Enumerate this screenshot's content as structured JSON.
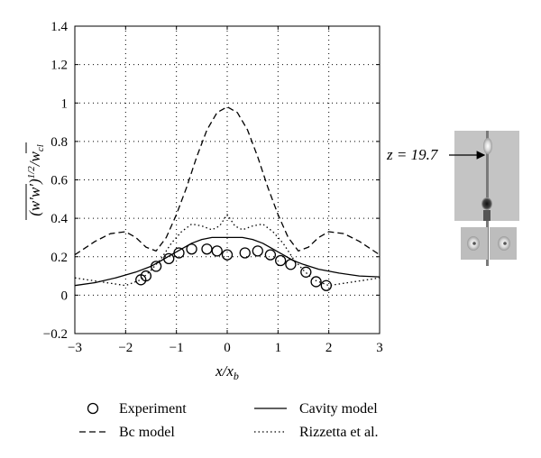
{
  "chart_data": {
    "type": "line",
    "title": "",
    "xlabel": "x/x_b",
    "ylabel": "(w'w')^{1/2}/w_cl",
    "xlim": [
      -3,
      3
    ],
    "ylim": [
      -0.2,
      1.4
    ],
    "grid": true,
    "legend_position": "below",
    "xticks": [
      -3,
      -2,
      -1,
      0,
      1,
      2,
      3
    ],
    "yticks": [
      -0.2,
      0,
      0.2,
      0.4,
      0.6,
      0.8,
      1,
      1.2,
      1.4
    ],
    "xtick_labels": [
      "−3",
      "−2",
      "−1",
      "0",
      "1",
      "2",
      "3"
    ],
    "ytick_labels": [
      "−0.2",
      "0",
      "0.2",
      "0.4",
      "0.6",
      "0.8",
      "1",
      "1.2",
      "1.4"
    ],
    "series": [
      {
        "name": "Experiment",
        "style": "markers",
        "x": [
          -1.7,
          -1.6,
          -1.4,
          -1.15,
          -0.95,
          -0.7,
          -0.4,
          -0.2,
          0,
          0.35,
          0.6,
          0.85,
          1.05,
          1.25,
          1.55,
          1.75,
          1.95
        ],
        "y": [
          0.08,
          0.1,
          0.15,
          0.19,
          0.22,
          0.24,
          0.24,
          0.23,
          0.21,
          0.22,
          0.23,
          0.21,
          0.18,
          0.16,
          0.12,
          0.07,
          0.05
        ]
      },
      {
        "name": "Cavity model",
        "style": "solid",
        "x": [
          -3,
          -2.6,
          -2.2,
          -1.8,
          -1.5,
          -1.3,
          -1.1,
          -0.9,
          -0.7,
          -0.5,
          -0.3,
          0,
          0.3,
          0.5,
          0.7,
          0.9,
          1.1,
          1.3,
          1.5,
          1.8,
          2.2,
          2.6,
          3
        ],
        "y": [
          0.05,
          0.065,
          0.09,
          0.12,
          0.15,
          0.18,
          0.21,
          0.24,
          0.27,
          0.29,
          0.3,
          0.3,
          0.3,
          0.29,
          0.27,
          0.24,
          0.21,
          0.18,
          0.16,
          0.135,
          0.115,
          0.1,
          0.095
        ]
      },
      {
        "name": "Bc model",
        "style": "dashed",
        "x": [
          -3,
          -2.6,
          -2.3,
          -2.0,
          -1.8,
          -1.6,
          -1.4,
          -1.2,
          -1.0,
          -0.8,
          -0.6,
          -0.4,
          -0.2,
          0,
          0.2,
          0.4,
          0.6,
          0.8,
          1.0,
          1.2,
          1.4,
          1.6,
          1.8,
          2.0,
          2.3,
          2.6,
          3
        ],
        "y": [
          0.21,
          0.28,
          0.32,
          0.33,
          0.3,
          0.25,
          0.23,
          0.3,
          0.42,
          0.56,
          0.72,
          0.86,
          0.95,
          0.98,
          0.95,
          0.86,
          0.72,
          0.56,
          0.42,
          0.3,
          0.23,
          0.25,
          0.3,
          0.33,
          0.32,
          0.28,
          0.21
        ]
      },
      {
        "name": "Rizzetta et al.",
        "style": "dotted",
        "x": [
          -3,
          -2.5,
          -2.0,
          -1.7,
          -1.5,
          -1.3,
          -1.1,
          -0.9,
          -0.7,
          -0.5,
          -0.3,
          -0.15,
          0,
          0.15,
          0.3,
          0.5,
          0.7,
          0.9,
          1.1,
          1.3,
          1.5,
          1.7,
          2.0,
          2.5,
          3
        ],
        "y": [
          0.09,
          0.07,
          0.05,
          0.08,
          0.13,
          0.19,
          0.27,
          0.33,
          0.37,
          0.36,
          0.34,
          0.36,
          0.42,
          0.36,
          0.34,
          0.36,
          0.37,
          0.33,
          0.27,
          0.19,
          0.13,
          0.08,
          0.05,
          0.07,
          0.09
        ]
      }
    ]
  },
  "inset": {
    "label": "z = 19.7"
  }
}
